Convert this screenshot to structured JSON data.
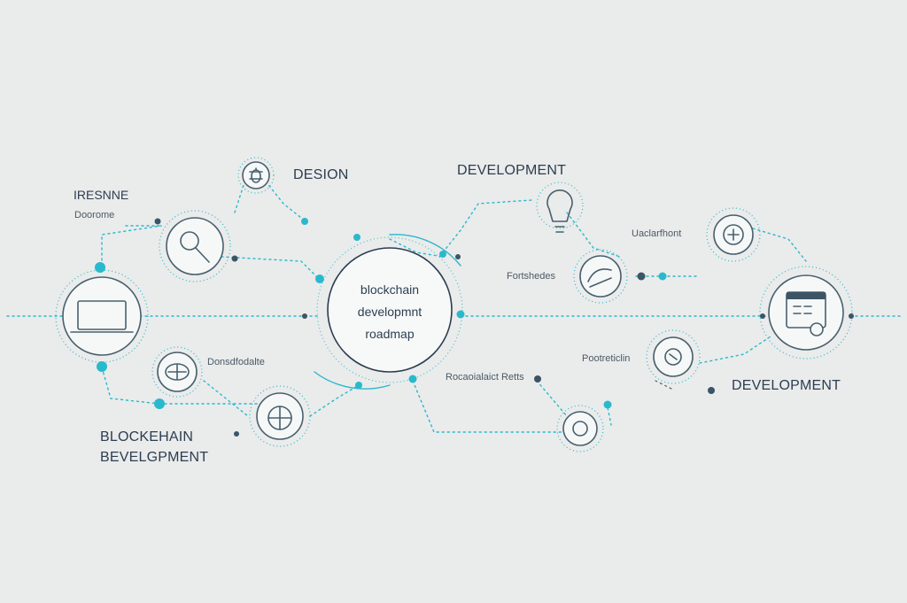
{
  "diagram": {
    "title_lines": [
      "blockchain",
      "developmnt",
      "roadmap"
    ],
    "labels": {
      "design": "DESION",
      "development_top": "DEVELOPMENT",
      "research_title": "IRESNNE",
      "research_sub": "Doorome",
      "blockchain_dev_line1": "BLOCKEHAIN",
      "blockchain_dev_line2": "BEVELGPMENT",
      "development_right": "DEVELOPMENT",
      "label_left_mid": "Donsdfodalte",
      "label_future": "Fortshedes",
      "label_deploy": "Uaclarfhont",
      "label_prototype": "Pootreticlin",
      "label_research_tests": "Rocaoialaict Retts"
    },
    "colors": {
      "accent": "#29b9cc",
      "ink": "#2c3e50",
      "stroke": "#48606e",
      "background": "#eaebeb"
    },
    "icons": [
      "laptop-icon",
      "magnifier-icon",
      "bug-icon",
      "cog-icon",
      "globe-icon",
      "lightbulb-icon",
      "hand-icon",
      "gear-coin-icon",
      "cloud-icon",
      "calculator-icon",
      "coin-icon",
      "network-icon"
    ]
  }
}
